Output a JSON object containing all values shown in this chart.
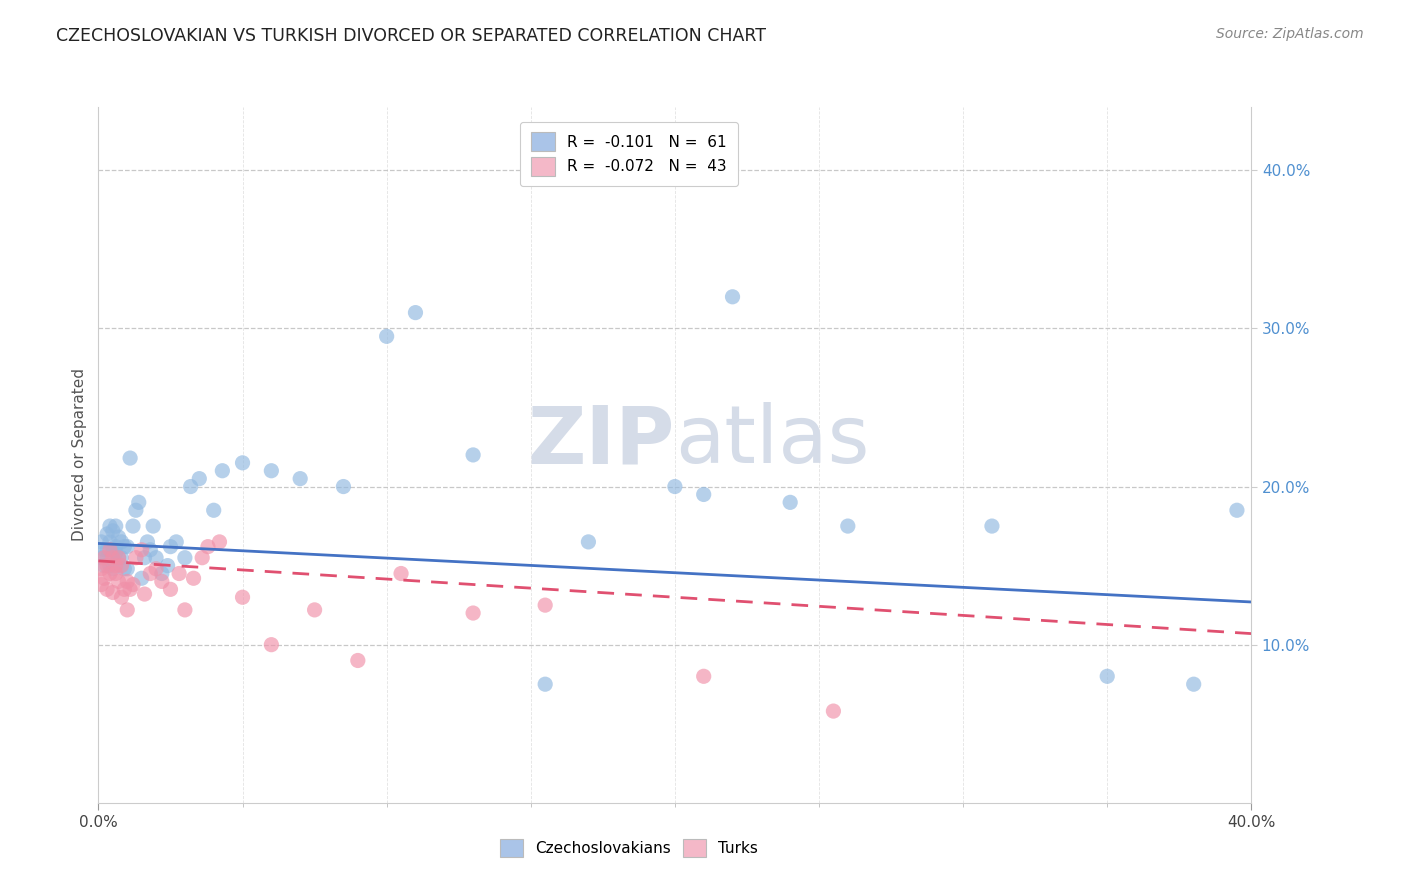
{
  "title": "CZECHOSLOVAKIAN VS TURKISH DIVORCED OR SEPARATED CORRELATION CHART",
  "source": "Source: ZipAtlas.com",
  "ylabel": "Divorced or Separated",
  "legend_blue_label": "R =  -0.101   N =  61",
  "legend_pink_label": "R =  -0.072   N =  43",
  "legend_blue_color": "#aac4e8",
  "legend_pink_color": "#f4b8c8",
  "scatter_blue_color": "#90b8e0",
  "scatter_pink_color": "#f090a8",
  "trendline_blue_color": "#4472c4",
  "trendline_pink_color": "#e05070",
  "watermark_color": "#d5dce8",
  "background_color": "#ffffff",
  "grid_color": "#c8c8c8",
  "right_tick_color": "#5090d0",
  "xlim": [
    0.0,
    0.4
  ],
  "ylim": [
    0.0,
    0.44
  ],
  "ytick_right": [
    0.1,
    0.2,
    0.3,
    0.4
  ],
  "ytick_labels_right": [
    "10.0%",
    "20.0%",
    "30.0%",
    "40.0%"
  ],
  "blue_scatter_x": [
    0.001,
    0.001,
    0.002,
    0.002,
    0.003,
    0.003,
    0.003,
    0.004,
    0.004,
    0.004,
    0.005,
    0.005,
    0.005,
    0.006,
    0.006,
    0.006,
    0.007,
    0.007,
    0.008,
    0.008,
    0.009,
    0.009,
    0.01,
    0.01,
    0.011,
    0.012,
    0.013,
    0.014,
    0.015,
    0.016,
    0.017,
    0.018,
    0.019,
    0.02,
    0.022,
    0.024,
    0.025,
    0.027,
    0.03,
    0.032,
    0.035,
    0.04,
    0.043,
    0.05,
    0.06,
    0.07,
    0.085,
    0.1,
    0.11,
    0.13,
    0.155,
    0.17,
    0.2,
    0.21,
    0.22,
    0.24,
    0.26,
    0.31,
    0.35,
    0.38,
    0.395
  ],
  "blue_scatter_y": [
    0.165,
    0.155,
    0.16,
    0.15,
    0.16,
    0.155,
    0.17,
    0.165,
    0.15,
    0.175,
    0.16,
    0.148,
    0.172,
    0.158,
    0.162,
    0.175,
    0.155,
    0.168,
    0.155,
    0.165,
    0.148,
    0.162,
    0.148,
    0.162,
    0.218,
    0.175,
    0.185,
    0.19,
    0.142,
    0.155,
    0.165,
    0.16,
    0.175,
    0.155,
    0.145,
    0.15,
    0.162,
    0.165,
    0.155,
    0.2,
    0.205,
    0.185,
    0.21,
    0.215,
    0.21,
    0.205,
    0.2,
    0.295,
    0.31,
    0.22,
    0.075,
    0.165,
    0.2,
    0.195,
    0.32,
    0.19,
    0.175,
    0.175,
    0.08,
    0.075,
    0.185
  ],
  "pink_scatter_x": [
    0.001,
    0.001,
    0.002,
    0.002,
    0.003,
    0.003,
    0.004,
    0.004,
    0.005,
    0.005,
    0.006,
    0.006,
    0.007,
    0.007,
    0.008,
    0.008,
    0.009,
    0.01,
    0.01,
    0.011,
    0.012,
    0.013,
    0.015,
    0.016,
    0.018,
    0.02,
    0.022,
    0.025,
    0.028,
    0.03,
    0.033,
    0.036,
    0.038,
    0.042,
    0.05,
    0.06,
    0.075,
    0.09,
    0.105,
    0.13,
    0.155,
    0.21,
    0.255
  ],
  "pink_scatter_y": [
    0.148,
    0.138,
    0.142,
    0.155,
    0.15,
    0.135,
    0.16,
    0.145,
    0.155,
    0.133,
    0.15,
    0.145,
    0.155,
    0.14,
    0.15,
    0.13,
    0.135,
    0.14,
    0.122,
    0.135,
    0.138,
    0.155,
    0.16,
    0.132,
    0.145,
    0.148,
    0.14,
    0.135,
    0.145,
    0.122,
    0.142,
    0.155,
    0.162,
    0.165,
    0.13,
    0.1,
    0.122,
    0.09,
    0.145,
    0.12,
    0.125,
    0.08,
    0.058
  ]
}
